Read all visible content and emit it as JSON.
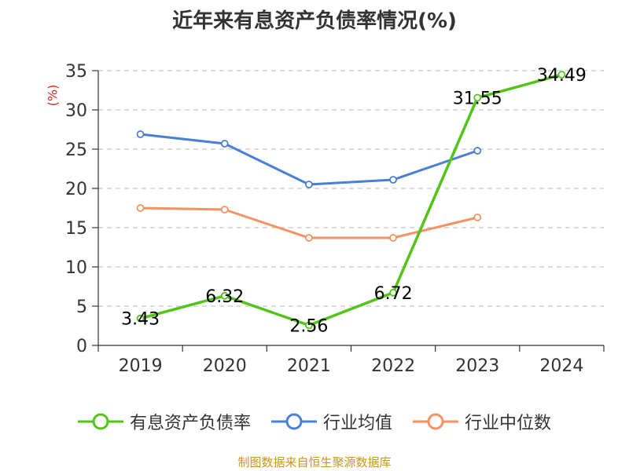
{
  "title": "近年来有息资产负债率情况(%)",
  "y_unit": "(%)",
  "source": "制图数据来自恒生聚源数据库",
  "chart_data": {
    "type": "line",
    "title": "近年来有息资产负债率情况(%)",
    "categories": [
      "2019",
      "2020",
      "2021",
      "2022",
      "2023",
      "2024"
    ],
    "ylim": [
      0,
      35
    ],
    "yticks": [
      0,
      5,
      10,
      15,
      20,
      25,
      30,
      35
    ],
    "ylabel": "(%)",
    "grid": true,
    "legend_position": "bottom",
    "series": [
      {
        "name": "有息资产负债率",
        "color": "#52c41a",
        "values": [
          3.43,
          6.32,
          2.56,
          6.72,
          31.55,
          34.49
        ],
        "labels": [
          "3.43",
          "6.32",
          "2.56",
          "6.72",
          "31.55",
          "34.49"
        ]
      },
      {
        "name": "行业均值",
        "color": "#4a7fd6",
        "values": [
          26.9,
          25.7,
          20.5,
          21.1,
          24.8,
          null
        ]
      },
      {
        "name": "行业中位数",
        "color": "#f39262",
        "values": [
          17.5,
          17.3,
          13.7,
          13.7,
          16.3,
          null
        ]
      }
    ]
  }
}
